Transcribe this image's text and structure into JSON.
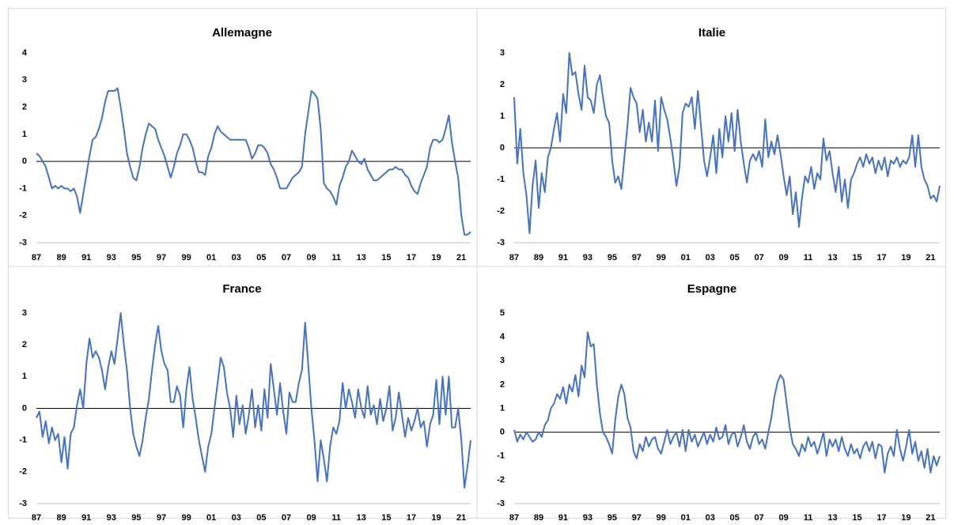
{
  "chart_data": [
    {
      "type": "line",
      "title": "Allemagne",
      "color": "#4472c4",
      "zero_line": true,
      "ylim": [
        -3,
        4
      ],
      "yticks": [
        -3,
        -2,
        -1,
        0,
        1,
        2,
        3,
        4
      ],
      "categories": [
        "87",
        null,
        null,
        null,
        null,
        null,
        null,
        null,
        "89",
        null,
        null,
        null,
        null,
        null,
        null,
        null,
        "91",
        null,
        null,
        null,
        null,
        null,
        null,
        null,
        "93",
        null,
        null,
        null,
        null,
        null,
        null,
        null,
        "95",
        null,
        null,
        null,
        null,
        null,
        null,
        null,
        "97",
        null,
        null,
        null,
        null,
        null,
        null,
        null,
        "99",
        null,
        null,
        null,
        null,
        null,
        null,
        null,
        "01",
        null,
        null,
        null,
        null,
        null,
        null,
        null,
        "03",
        null,
        null,
        null,
        null,
        null,
        null,
        null,
        "05",
        null,
        null,
        null,
        null,
        null,
        null,
        null,
        "07",
        null,
        null,
        null,
        null,
        null,
        null,
        null,
        "09",
        null,
        null,
        null,
        null,
        null,
        null,
        null,
        "11",
        null,
        null,
        null,
        null,
        null,
        null,
        null,
        "13",
        null,
        null,
        null,
        null,
        null,
        null,
        null,
        "15",
        null,
        null,
        null,
        null,
        null,
        null,
        null,
        "17",
        null,
        null,
        null,
        null,
        null,
        null,
        null,
        "19",
        null,
        null,
        null,
        null,
        null,
        null,
        null,
        "21",
        null,
        null,
        null
      ],
      "values": [
        0.3,
        0.2,
        0.0,
        -0.2,
        -0.6,
        -1.0,
        -0.9,
        -1.0,
        -0.9,
        -1.0,
        -1.0,
        -1.1,
        -1.0,
        -1.3,
        -1.9,
        -1.2,
        -0.5,
        0.2,
        0.8,
        0.9,
        1.2,
        1.6,
        2.2,
        2.6,
        2.6,
        2.6,
        2.7,
        2.0,
        1.2,
        0.3,
        -0.2,
        -0.6,
        -0.7,
        -0.2,
        0.5,
        1.0,
        1.4,
        1.3,
        1.2,
        0.8,
        0.5,
        0.2,
        -0.2,
        -0.6,
        -0.2,
        0.3,
        0.6,
        1.0,
        1.0,
        0.8,
        0.5,
        0.0,
        -0.4,
        -0.4,
        -0.5,
        0.2,
        0.5,
        1.0,
        1.3,
        1.1,
        1.0,
        0.9,
        0.8,
        0.8,
        0.8,
        0.8,
        0.8,
        0.8,
        0.5,
        0.1,
        0.3,
        0.6,
        0.6,
        0.5,
        0.3,
        -0.1,
        -0.3,
        -0.6,
        -1.0,
        -1.0,
        -1.0,
        -0.8,
        -0.6,
        -0.5,
        -0.4,
        -0.2,
        1.0,
        1.8,
        2.6,
        2.5,
        2.3,
        1.2,
        -0.8,
        -1.0,
        -1.1,
        -1.3,
        -1.6,
        -0.9,
        -0.6,
        -0.2,
        0.0,
        0.4,
        0.2,
        0.0,
        -0.1,
        0.1,
        -0.3,
        -0.5,
        -0.7,
        -0.7,
        -0.6,
        -0.5,
        -0.4,
        -0.3,
        -0.3,
        -0.2,
        -0.3,
        -0.3,
        -0.5,
        -0.6,
        -0.9,
        -1.1,
        -1.2,
        -0.8,
        -0.5,
        -0.2,
        0.5,
        0.8,
        0.8,
        0.7,
        0.8,
        1.2,
        1.7,
        0.7,
        0.0,
        -0.6,
        -2.0,
        -2.7,
        -2.7,
        -2.6
      ]
    },
    {
      "type": "line",
      "title": "Italie",
      "color": "#4472c4",
      "zero_line": true,
      "ylim": [
        -3,
        3
      ],
      "yticks": [
        -3,
        -2,
        -1,
        0,
        1,
        2,
        3
      ],
      "categories": [
        "87",
        null,
        null,
        null,
        null,
        null,
        null,
        null,
        "89",
        null,
        null,
        null,
        null,
        null,
        null,
        null,
        "91",
        null,
        null,
        null,
        null,
        null,
        null,
        null,
        "93",
        null,
        null,
        null,
        null,
        null,
        null,
        null,
        "95",
        null,
        null,
        null,
        null,
        null,
        null,
        null,
        "97",
        null,
        null,
        null,
        null,
        null,
        null,
        null,
        "99",
        null,
        null,
        null,
        null,
        null,
        null,
        null,
        "01",
        null,
        null,
        null,
        null,
        null,
        null,
        null,
        "03",
        null,
        null,
        null,
        null,
        null,
        null,
        null,
        "05",
        null,
        null,
        null,
        null,
        null,
        null,
        null,
        "07",
        null,
        null,
        null,
        null,
        null,
        null,
        null,
        "09",
        null,
        null,
        null,
        null,
        null,
        null,
        null,
        "11",
        null,
        null,
        null,
        null,
        null,
        null,
        null,
        "13",
        null,
        null,
        null,
        null,
        null,
        null,
        null,
        "15",
        null,
        null,
        null,
        null,
        null,
        null,
        null,
        "17",
        null,
        null,
        null,
        null,
        null,
        null,
        null,
        "19",
        null,
        null,
        null,
        null,
        null,
        null,
        null,
        "21",
        null,
        null,
        null
      ],
      "values": [
        1.6,
        -0.5,
        0.6,
        -0.8,
        -1.5,
        -2.7,
        -1.2,
        -0.4,
        -1.9,
        -0.8,
        -1.4,
        -0.3,
        0.0,
        0.6,
        1.1,
        0.2,
        1.7,
        1.1,
        3.0,
        2.3,
        2.4,
        1.7,
        1.2,
        2.6,
        1.6,
        1.5,
        1.1,
        2.0,
        2.3,
        1.6,
        1.0,
        0.8,
        -0.4,
        -1.1,
        -0.9,
        -1.3,
        -0.3,
        0.7,
        1.9,
        1.6,
        1.4,
        0.5,
        1.2,
        0.2,
        0.8,
        0.2,
        1.5,
        -0.1,
        1.6,
        1.2,
        0.9,
        0.3,
        -0.4,
        -1.2,
        -0.6,
        1.1,
        1.4,
        1.3,
        1.6,
        0.6,
        1.8,
        0.7,
        -0.4,
        -0.9,
        -0.3,
        0.4,
        -0.8,
        0.6,
        -0.3,
        1.0,
        0.2,
        1.1,
        -0.1,
        1.2,
        0.2,
        -0.5,
        -1.1,
        -0.4,
        -0.2,
        -0.4,
        -0.1,
        -0.6,
        0.9,
        -0.3,
        0.2,
        -0.2,
        0.4,
        -0.2,
        -0.9,
        -1.5,
        -0.9,
        -2.1,
        -1.4,
        -2.5,
        -1.6,
        -0.9,
        -1.1,
        -0.6,
        -1.3,
        -0.8,
        -1.0,
        0.3,
        -0.4,
        -0.1,
        -0.8,
        -1.4,
        -0.6,
        -1.7,
        -1.0,
        -1.9,
        -1.0,
        -0.8,
        -0.5,
        -0.3,
        -0.6,
        -0.2,
        -0.5,
        -0.3,
        -0.8,
        -0.4,
        -0.7,
        -0.3,
        -0.9,
        -0.4,
        -0.5,
        -0.3,
        -0.6,
        -0.4,
        -0.5,
        -0.3,
        0.4,
        -0.6,
        0.4,
        -0.6,
        -1.0,
        -1.2,
        -1.6,
        -1.5,
        -1.7,
        -1.2
      ]
    },
    {
      "type": "line",
      "title": "France",
      "color": "#4472c4",
      "zero_line": true,
      "ylim": [
        -3,
        3
      ],
      "yticks": [
        -3,
        -2,
        -1,
        0,
        1,
        2,
        3
      ],
      "categories": [
        "87",
        null,
        null,
        null,
        null,
        null,
        null,
        null,
        "89",
        null,
        null,
        null,
        null,
        null,
        null,
        null,
        "91",
        null,
        null,
        null,
        null,
        null,
        null,
        null,
        "93",
        null,
        null,
        null,
        null,
        null,
        null,
        null,
        "95",
        null,
        null,
        null,
        null,
        null,
        null,
        null,
        "97",
        null,
        null,
        null,
        null,
        null,
        null,
        null,
        "99",
        null,
        null,
        null,
        null,
        null,
        null,
        null,
        "01",
        null,
        null,
        null,
        null,
        null,
        null,
        null,
        "03",
        null,
        null,
        null,
        null,
        null,
        null,
        null,
        "05",
        null,
        null,
        null,
        null,
        null,
        null,
        null,
        "07",
        null,
        null,
        null,
        null,
        null,
        null,
        null,
        "09",
        null,
        null,
        null,
        null,
        null,
        null,
        null,
        "11",
        null,
        null,
        null,
        null,
        null,
        null,
        null,
        "13",
        null,
        null,
        null,
        null,
        null,
        null,
        null,
        "15",
        null,
        null,
        null,
        null,
        null,
        null,
        null,
        "17",
        null,
        null,
        null,
        null,
        null,
        null,
        null,
        "19",
        null,
        null,
        null,
        null,
        null,
        null,
        null,
        "21",
        null,
        null,
        null
      ],
      "values": [
        -0.3,
        -0.1,
        -0.9,
        -0.4,
        -1.1,
        -0.6,
        -1.0,
        -0.8,
        -1.7,
        -0.9,
        -1.9,
        -0.8,
        -0.6,
        0.1,
        0.6,
        0.0,
        1.4,
        2.2,
        1.6,
        1.8,
        1.6,
        1.2,
        0.6,
        1.3,
        1.8,
        1.4,
        2.2,
        3.0,
        2.0,
        1.2,
        0.0,
        -0.8,
        -1.2,
        -1.5,
        -1.0,
        -0.3,
        0.3,
        1.2,
        2.0,
        2.6,
        1.8,
        1.4,
        1.2,
        0.2,
        0.2,
        0.7,
        0.4,
        -0.6,
        0.6,
        1.3,
        0.3,
        -0.3,
        -1.0,
        -1.5,
        -2.0,
        -1.2,
        -0.8,
        0.0,
        0.8,
        1.6,
        1.3,
        0.5,
        0.0,
        -0.9,
        0.4,
        -0.5,
        0.1,
        -0.8,
        -0.2,
        0.6,
        -0.6,
        0.1,
        -0.7,
        0.6,
        -0.3,
        1.4,
        0.6,
        -0.2,
        0.8,
        -0.1,
        -0.8,
        0.5,
        0.2,
        0.2,
        0.8,
        1.2,
        2.7,
        1.4,
        0.0,
        -1.0,
        -2.3,
        -1.0,
        -1.6,
        -2.3,
        -1.2,
        -0.6,
        -0.8,
        -0.4,
        0.8,
        0.0,
        0.6,
        0.2,
        -0.3,
        0.6,
        0.0,
        -0.3,
        0.7,
        -0.2,
        0.1,
        -0.5,
        0.3,
        -0.4,
        0.0,
        0.7,
        -0.7,
        -0.3,
        0.5,
        -0.2,
        -0.9,
        -0.3,
        -0.7,
        -0.4,
        0.0,
        -0.6,
        -0.4,
        -1.2,
        -0.5,
        -0.2,
        0.9,
        -0.5,
        1.0,
        -0.2,
        1.0,
        -0.6,
        -0.6,
        0.0,
        -1.0,
        -2.5,
        -1.8,
        -1.0
      ]
    },
    {
      "type": "line",
      "title": "Espagne",
      "color": "#4472c4",
      "zero_line": true,
      "ylim": [
        -3,
        5
      ],
      "yticks": [
        -3,
        -2,
        -1,
        0,
        1,
        2,
        3,
        4,
        5
      ],
      "categories": [
        "87",
        null,
        null,
        null,
        null,
        null,
        null,
        null,
        "89",
        null,
        null,
        null,
        null,
        null,
        null,
        null,
        "91",
        null,
        null,
        null,
        null,
        null,
        null,
        null,
        "93",
        null,
        null,
        null,
        null,
        null,
        null,
        null,
        "95",
        null,
        null,
        null,
        null,
        null,
        null,
        null,
        "97",
        null,
        null,
        null,
        null,
        null,
        null,
        null,
        "99",
        null,
        null,
        null,
        null,
        null,
        null,
        null,
        "01",
        null,
        null,
        null,
        null,
        null,
        null,
        null,
        "03",
        null,
        null,
        null,
        null,
        null,
        null,
        null,
        "05",
        null,
        null,
        null,
        null,
        null,
        null,
        null,
        "07",
        null,
        null,
        null,
        null,
        null,
        null,
        null,
        "09",
        null,
        null,
        null,
        null,
        null,
        null,
        null,
        "11",
        null,
        null,
        null,
        null,
        null,
        null,
        null,
        "13",
        null,
        null,
        null,
        null,
        null,
        null,
        null,
        "15",
        null,
        null,
        null,
        null,
        null,
        null,
        null,
        "17",
        null,
        null,
        null,
        null,
        null,
        null,
        null,
        "19",
        null,
        null,
        null,
        null,
        null,
        null,
        null,
        "21",
        null,
        null,
        null
      ],
      "values": [
        0.1,
        -0.4,
        -0.1,
        -0.3,
        0.0,
        -0.2,
        -0.4,
        -0.3,
        0.0,
        -0.2,
        0.3,
        0.5,
        1.0,
        1.2,
        1.6,
        1.4,
        1.9,
        1.2,
        2.0,
        1.7,
        2.4,
        1.5,
        2.8,
        2.3,
        4.2,
        3.6,
        3.7,
        2.0,
        0.8,
        0.0,
        -0.2,
        -0.5,
        -0.9,
        0.5,
        1.5,
        2.0,
        1.6,
        0.6,
        0.2,
        -0.8,
        -1.1,
        -0.5,
        -0.8,
        -0.2,
        -0.6,
        -0.3,
        -0.2,
        -0.7,
        -0.9,
        -0.4,
        0.1,
        -0.5,
        -0.2,
        0.0,
        -0.6,
        0.1,
        -0.8,
        0.1,
        -0.4,
        -0.1,
        -0.6,
        -0.3,
        0.0,
        -0.5,
        -0.1,
        -0.4,
        0.2,
        -0.3,
        -0.2,
        0.3,
        -0.5,
        -0.1,
        0.0,
        -0.6,
        -0.2,
        0.3,
        -0.4,
        -0.7,
        -0.2,
        0.0,
        -0.5,
        -0.3,
        -0.7,
        0.0,
        0.6,
        1.5,
        2.1,
        2.4,
        2.2,
        1.2,
        0.2,
        -0.5,
        -0.7,
        -1.0,
        -0.5,
        -0.8,
        -0.2,
        -0.6,
        -0.4,
        -0.9,
        -0.5,
        0.0,
        -1.0,
        -0.3,
        -0.6,
        -0.3,
        -0.8,
        -0.2,
        -0.7,
        -1.0,
        -0.5,
        -0.9,
        -0.7,
        -1.1,
        -0.6,
        -0.4,
        -0.8,
        -0.4,
        -1.1,
        -0.5,
        -0.6,
        -1.7,
        -0.9,
        -0.6,
        -1.0,
        0.1,
        -0.7,
        -1.2,
        -0.6,
        0.1,
        -0.9,
        -0.4,
        -1.2,
        -0.8,
        -1.5,
        -0.7,
        -1.7,
        -1.0,
        -1.4,
        -1.0
      ]
    }
  ]
}
